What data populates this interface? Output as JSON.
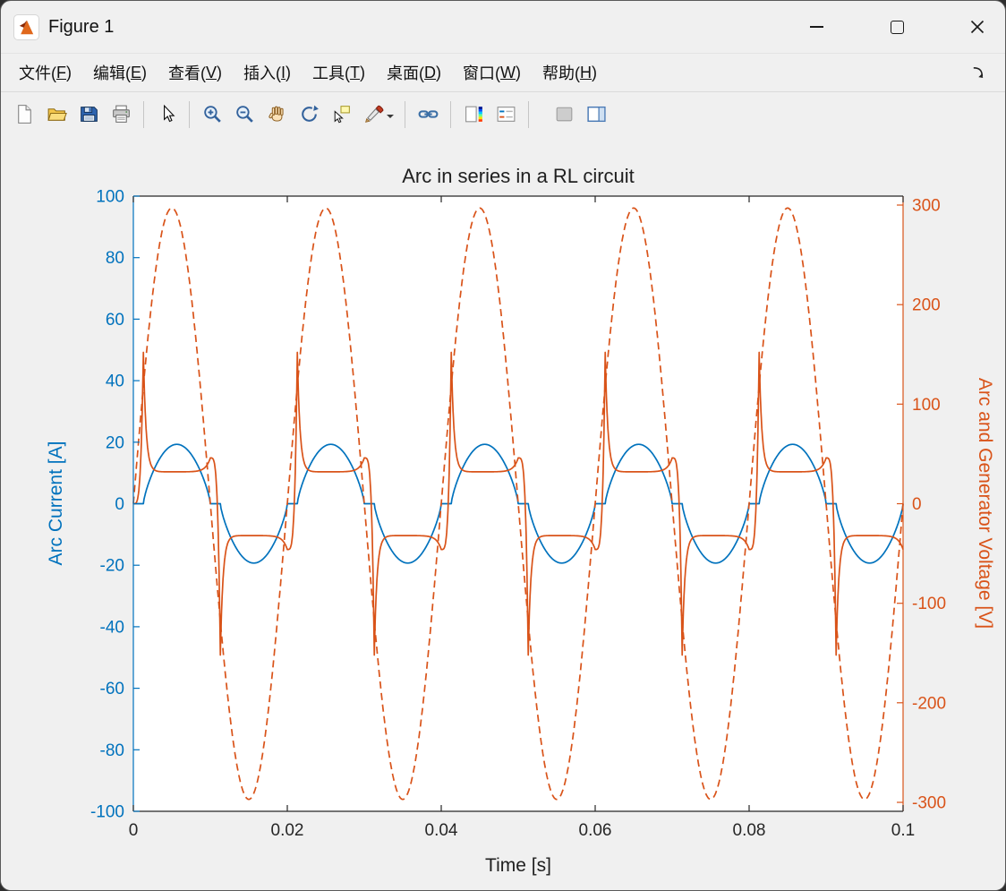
{
  "window": {
    "title": "Figure 1",
    "controls": [
      "minimize",
      "maximize",
      "close"
    ],
    "app_icon": "matlab-figure-icon"
  },
  "menu": {
    "items": [
      {
        "id": "file",
        "label": "文件",
        "key": "F"
      },
      {
        "id": "edit",
        "label": "编辑",
        "key": "E"
      },
      {
        "id": "view",
        "label": "查看",
        "key": "V"
      },
      {
        "id": "insert",
        "label": "插入",
        "key": "I"
      },
      {
        "id": "tools",
        "label": "工具",
        "key": "T"
      },
      {
        "id": "desktop",
        "label": "桌面",
        "key": "D"
      },
      {
        "id": "window",
        "label": "窗口",
        "key": "W"
      },
      {
        "id": "help",
        "label": "帮助",
        "key": "H"
      }
    ],
    "dock_icon": "dock-figure-icon"
  },
  "toolbar": {
    "buttons": [
      "new-figure",
      "open-file",
      "save-figure",
      "print-figure",
      "edit-plot-pointer",
      "zoom-in",
      "zoom-out",
      "pan",
      "rotate-3d",
      "data-cursor",
      "brush-data",
      "link-plot",
      "insert-colorbar",
      "insert-legend",
      "hide-plot-tools",
      "show-plot-tools"
    ]
  },
  "chart_data": {
    "type": "line",
    "title": "Arc in series in a RL circuit",
    "xlabel": "Time [s]",
    "ylabel_left": "Arc Current [A]",
    "ylabel_right": "Arc and Generator Voltage [V]",
    "xlim": [
      0,
      0.1
    ],
    "ylim_left": [
      -100,
      100
    ],
    "ylim_right": [
      -309,
      309
    ],
    "xticks": [
      0,
      0.02,
      0.04,
      0.06,
      0.08,
      0.1
    ],
    "xtick_labels": [
      "0",
      "0.02",
      "0.04",
      "0.06",
      "0.08",
      "0.1"
    ],
    "yticks_left": [
      100,
      80,
      60,
      40,
      20,
      0,
      -20,
      -40,
      -60,
      -80,
      -100
    ],
    "ytick_labels_left": [
      "100",
      "80",
      "60",
      "40",
      "20",
      "0",
      "-20",
      "-40",
      "-60",
      "-80",
      "-100"
    ],
    "yticks_right": [
      300,
      200,
      100,
      0,
      -100,
      -200,
      -300
    ],
    "ytick_labels_right": [
      "300",
      "200",
      "100",
      "0",
      "-100",
      "-200",
      "-300"
    ],
    "grid": false,
    "legend": "none",
    "axis_color_x": "#262626",
    "axis_color_left": "#0072BD",
    "axis_color_right": "#D95319",
    "series": [
      {
        "name": "Arc Current",
        "axis": "left",
        "style": "solid",
        "color": "#0072BD",
        "model": {
          "type": "arc-current",
          "peak_A": 19.3,
          "half_period_s": 0.01,
          "dwell_s": 0.0013,
          "shape_exp": 0.75
        }
      },
      {
        "name": "Generator Voltage",
        "axis": "right",
        "style": "dashed",
        "color": "#D95319",
        "model": {
          "type": "sine",
          "amplitude_V": 297,
          "frequency_hz": 50,
          "phase_deg": 0
        }
      },
      {
        "name": "Arc Voltage",
        "axis": "right",
        "style": "solid",
        "color": "#D95319",
        "model": {
          "type": "arc-voltage",
          "ignition_peak_V": 152,
          "plateau_V": 32,
          "extinction_peak_V": 46,
          "half_period_s": 0.01,
          "dwell_s": 0.0013,
          "spike_tau_s": 0.00035,
          "ext_tau_s": 0.0006
        }
      }
    ]
  }
}
